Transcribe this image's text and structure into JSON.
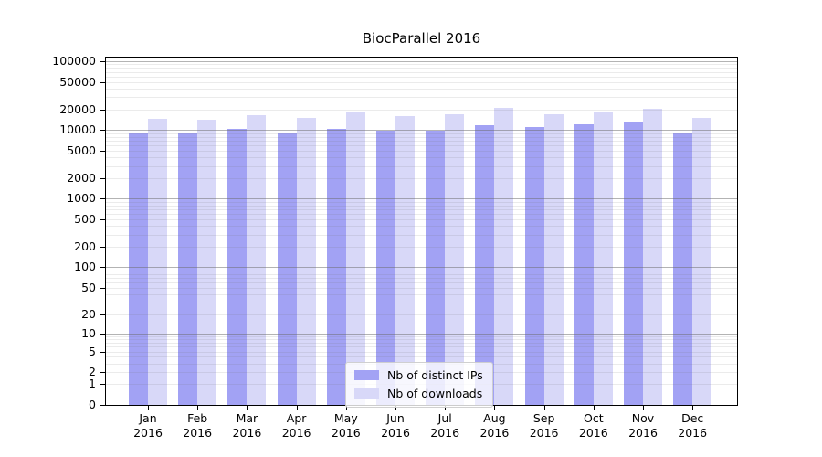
{
  "title": "BiocParallel 2016",
  "colors": {
    "ips": "#a2a2f4",
    "downloads": "#d8d8f8",
    "axis": "#000000",
    "grid_major": "#bbbbbb",
    "grid_minor": "#ebebeb"
  },
  "legend": {
    "items": [
      {
        "label": "Nb of distinct IPs",
        "color_key": "ips"
      },
      {
        "label": "Nb of downloads",
        "color_key": "downloads"
      }
    ]
  },
  "axes": {
    "x_year": "2016",
    "y_ticks": [
      0,
      1,
      2,
      5,
      10,
      20,
      50,
      100,
      200,
      500,
      1000,
      2000,
      5000,
      10000,
      20000,
      50000,
      100000
    ]
  },
  "chart_data": {
    "type": "bar",
    "title": "BiocParallel 2016",
    "categories": [
      "Jan",
      "Feb",
      "Mar",
      "Apr",
      "May",
      "Jun",
      "Jul",
      "Aug",
      "Sep",
      "Oct",
      "Nov",
      "Dec"
    ],
    "category_year": "2016",
    "series": [
      {
        "name": "Nb of distinct IPs",
        "values": [
          9000,
          9300,
          10500,
          9300,
          10500,
          9900,
          9800,
          11700,
          10900,
          12000,
          13100,
          9200
        ]
      },
      {
        "name": "Nb of downloads",
        "values": [
          14500,
          14200,
          16300,
          14800,
          18700,
          16100,
          16900,
          21000,
          17000,
          18700,
          20400,
          14800
        ]
      }
    ],
    "yscale": "log(1+x)",
    "ylim": [
      0,
      120000
    ],
    "y_ticks": [
      0,
      1,
      2,
      5,
      10,
      20,
      50,
      100,
      200,
      500,
      1000,
      2000,
      5000,
      10000,
      20000,
      50000,
      100000
    ],
    "grid": true,
    "legend_position": "lower center"
  }
}
